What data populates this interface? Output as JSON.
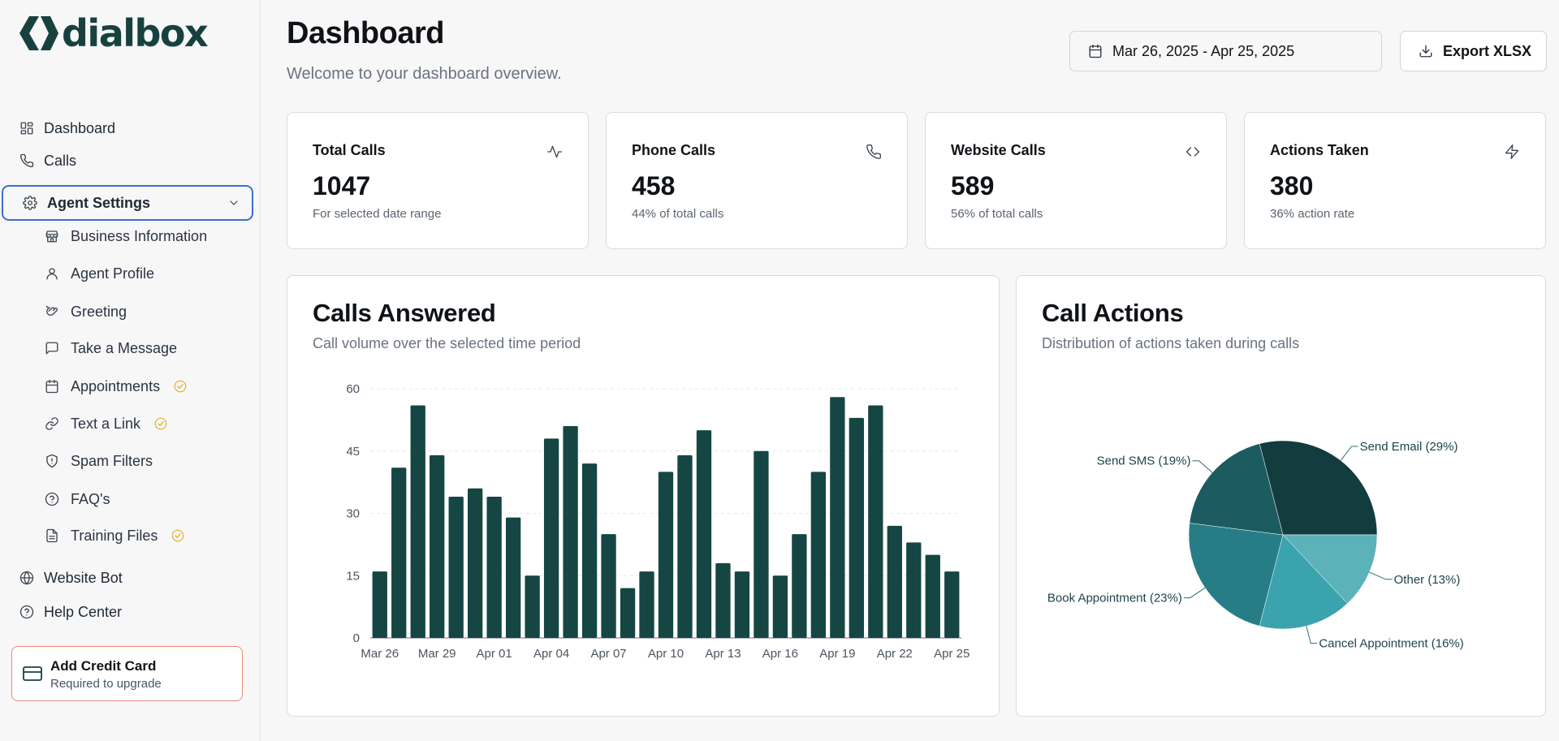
{
  "brand": {
    "name": "dialbox"
  },
  "sidebar": {
    "items_top": [
      {
        "label": "Dashboard",
        "icon": "dashboard-icon"
      },
      {
        "label": "Calls",
        "icon": "phone-icon"
      }
    ],
    "agent_settings": {
      "label": "Agent Settings",
      "expanded": true,
      "children": [
        {
          "label": "Business Information",
          "icon": "store-icon",
          "verified": false
        },
        {
          "label": "Agent Profile",
          "icon": "user-icon",
          "verified": false
        },
        {
          "label": "Greeting",
          "icon": "hand-icon",
          "verified": false
        },
        {
          "label": "Take a Message",
          "icon": "message-icon",
          "verified": false
        },
        {
          "label": "Appointments",
          "icon": "calendar-icon",
          "verified": true
        },
        {
          "label": "Text a Link",
          "icon": "link-icon",
          "verified": true
        },
        {
          "label": "Spam Filters",
          "icon": "shield-icon",
          "verified": false
        },
        {
          "label": "FAQ's",
          "icon": "help-icon",
          "verified": false
        },
        {
          "label": "Training Files",
          "icon": "file-icon",
          "verified": true
        }
      ]
    },
    "items_bottom": [
      {
        "label": "Website Bot",
        "icon": "globe-icon"
      },
      {
        "label": "Help Center",
        "icon": "help-icon"
      }
    ],
    "credit_card": {
      "title": "Add Credit Card",
      "subtitle": "Required to upgrade"
    }
  },
  "header": {
    "title": "Dashboard",
    "subtitle": "Welcome to your dashboard overview.",
    "date_range": "Mar 26, 2025 - Apr 25, 2025",
    "export_label": "Export XLSX"
  },
  "stats": [
    {
      "title": "Total Calls",
      "value": "1047",
      "sub": "For selected date range",
      "icon": "activity-icon"
    },
    {
      "title": "Phone Calls",
      "value": "458",
      "sub": "44% of total calls",
      "icon": "phone-icon"
    },
    {
      "title": "Website Calls",
      "value": "589",
      "sub": "56% of total calls",
      "icon": "code-icon"
    },
    {
      "title": "Actions Taken",
      "value": "380",
      "sub": "36% action rate",
      "icon": "zap-icon"
    }
  ],
  "calls_answered": {
    "title": "Calls Answered",
    "subtitle": "Call volume over the selected time period"
  },
  "call_actions": {
    "title": "Call Actions",
    "subtitle": "Distribution of actions taken during calls"
  },
  "colors": {
    "brand": "#17413e",
    "bar": "#154643",
    "accent_border": "#3b6fd4",
    "verified": "#e1b12c",
    "credit_border": "#e38d73"
  },
  "chart_data": [
    {
      "type": "bar",
      "title": "Calls Answered",
      "xlabel": "",
      "ylabel": "",
      "ylim": [
        0,
        60
      ],
      "yticks": [
        0,
        15,
        30,
        45,
        60
      ],
      "grid": true,
      "xtick_labels": [
        "Mar 26",
        "Mar 29",
        "Apr 01",
        "Apr 04",
        "Apr 07",
        "Apr 10",
        "Apr 13",
        "Apr 16",
        "Apr 19",
        "Apr 22",
        "Apr 25"
      ],
      "categories": [
        "Mar 26",
        "Mar 27",
        "Mar 28",
        "Mar 29",
        "Mar 30",
        "Mar 31",
        "Apr 01",
        "Apr 02",
        "Apr 03",
        "Apr 04",
        "Apr 05",
        "Apr 06",
        "Apr 07",
        "Apr 08",
        "Apr 09",
        "Apr 10",
        "Apr 11",
        "Apr 12",
        "Apr 13",
        "Apr 14",
        "Apr 15",
        "Apr 16",
        "Apr 17",
        "Apr 18",
        "Apr 19",
        "Apr 20",
        "Apr 21",
        "Apr 22",
        "Apr 23",
        "Apr 24",
        "Apr 25"
      ],
      "values": [
        16,
        41,
        56,
        44,
        34,
        36,
        34,
        29,
        15,
        48,
        51,
        42,
        25,
        12,
        16,
        40,
        44,
        50,
        18,
        16,
        45,
        15,
        25,
        40,
        58,
        53,
        56,
        27,
        23,
        20,
        16
      ]
    },
    {
      "type": "pie",
      "title": "Call Actions",
      "slices": [
        {
          "label": "Send Email (29%)",
          "value": 29,
          "color": "#133c3e"
        },
        {
          "label": "Other (13%)",
          "value": 13,
          "color": "#5bb2b8"
        },
        {
          "label": "Cancel Appointment (16%)",
          "value": 16,
          "color": "#3ba3ad"
        },
        {
          "label": "Book Appointment (23%)",
          "value": 23,
          "color": "#277d86"
        },
        {
          "label": "Send SMS (19%)",
          "value": 19,
          "color": "#1c5c61"
        }
      ]
    }
  ]
}
